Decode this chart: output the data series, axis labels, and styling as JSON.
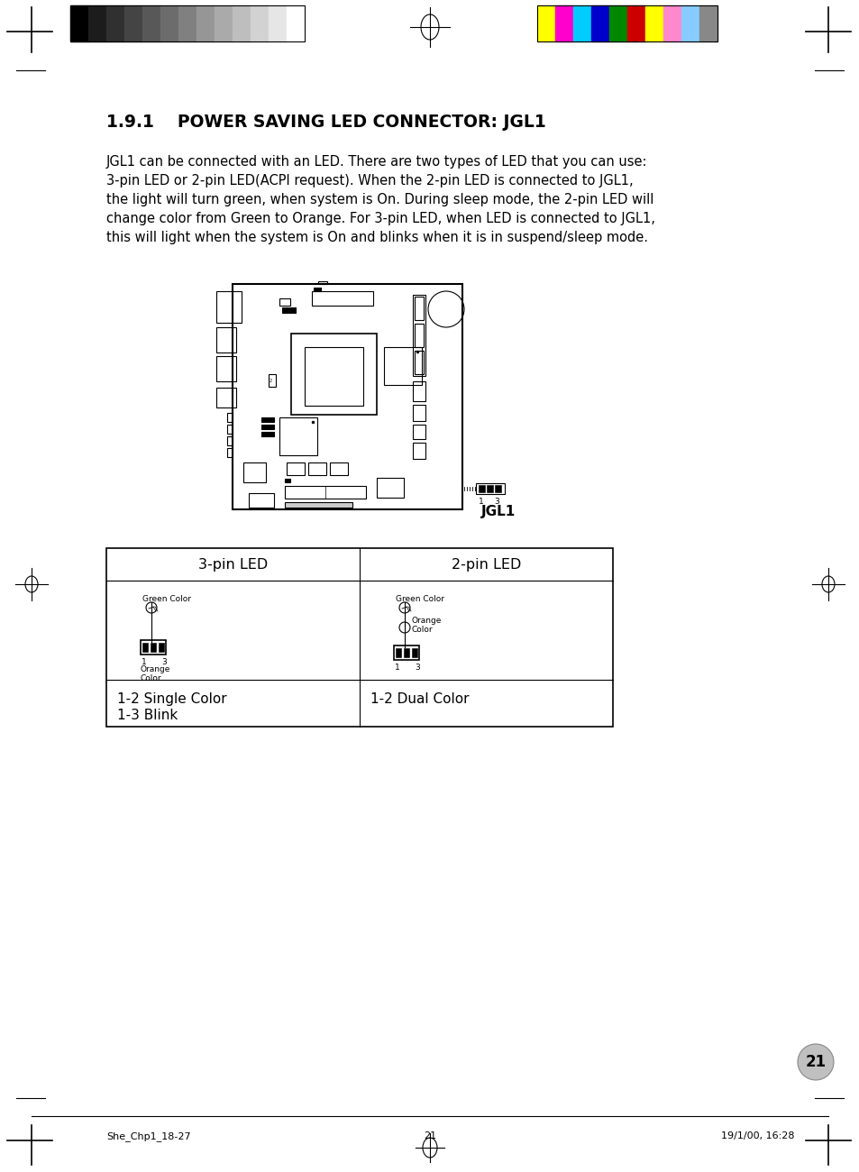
{
  "title_section": "1.9.1    POWER SAVING LED CONNECTOR: JGL1",
  "body_text": [
    "JGL1 can be connected with an LED. There are two types of LED that you can use:",
    "3-pin LED or 2-pin LED(ACPI request). When the 2-pin LED is connected to JGL1,",
    "the light will turn green, when system is On. During sleep mode, the 2-pin LED will",
    "change color from Green to Orange. For 3-pin LED, when LED is connected to JGL1,",
    "this will light when the system is On and blinks when it is in suspend/sleep mode."
  ],
  "table_headers": [
    "3-pin LED",
    "2-pin LED"
  ],
  "table_row2_left": [
    "1-2 Single Color",
    "1-3 Blink"
  ],
  "table_row2_right": [
    "1-2 Dual Color"
  ],
  "footer_left": "She_Chp1_18-27",
  "footer_center": "21",
  "footer_right": "19/1/00, 16:28",
  "page_number": "21",
  "bg_color": "#ffffff",
  "text_color": "#000000",
  "dark_bars": [
    "#000000",
    "#1c1c1c",
    "#303030",
    "#444444",
    "#585858",
    "#6c6c6c",
    "#808080",
    "#969696",
    "#aaaaaa",
    "#bebebe",
    "#d2d2d2",
    "#e6e6e6",
    "#ffffff"
  ],
  "bright_bars": [
    "#ffff00",
    "#ff00cc",
    "#00ccff",
    "#0000cc",
    "#008800",
    "#cc0000",
    "#ffff00",
    "#ff88cc",
    "#88ccff",
    "#888888"
  ]
}
